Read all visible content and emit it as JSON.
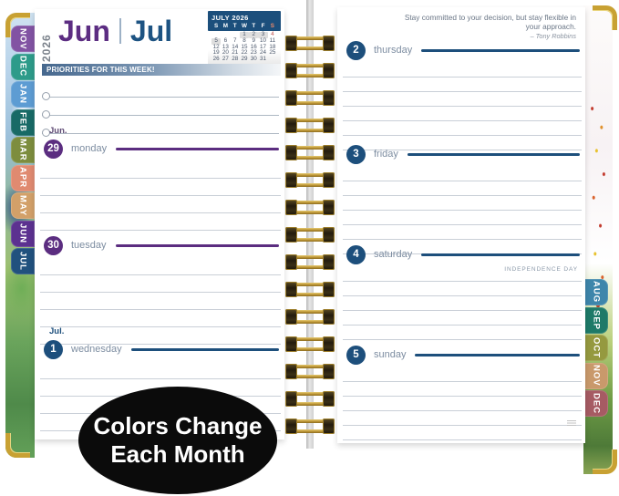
{
  "header": {
    "year": "2026",
    "month_left": "Jun",
    "divider": "|",
    "month_right": "Jul",
    "month_left_color": "#5c2d82",
    "month_right_color": "#1d5382"
  },
  "mini_calendar": {
    "title": "JULY 2026",
    "weekday_headers": [
      "S",
      "M",
      "T",
      "W",
      "T",
      "F",
      "S"
    ],
    "weeks": [
      [
        "",
        "",
        "",
        "1",
        "2",
        "3",
        "4"
      ],
      [
        "5",
        "6",
        "7",
        "8",
        "9",
        "10",
        "11"
      ],
      [
        "12",
        "13",
        "14",
        "15",
        "16",
        "17",
        "18"
      ],
      [
        "19",
        "20",
        "21",
        "22",
        "23",
        "24",
        "25"
      ],
      [
        "26",
        "27",
        "28",
        "29",
        "30",
        "31",
        ""
      ]
    ],
    "highlighted_days": [
      "1",
      "2",
      "3",
      "5"
    ],
    "holiday_day": "4",
    "header_bg": "#1c4f7c",
    "saturday_header_color": "#f08a6a",
    "holiday_color": "#c0504d"
  },
  "priorities": {
    "label": "PRIORITIES FOR THIS WEEK!",
    "row_count": 3
  },
  "left_page": {
    "days": [
      {
        "month_label": "Jun.",
        "month_label_color": "#5f4b75",
        "number": "29",
        "name": "monday",
        "color": "#5b2d80"
      },
      {
        "number": "30",
        "name": "tuesday",
        "color": "#5b2d80"
      },
      {
        "month_label": "Jul.",
        "month_label_color": "#1d4f7c",
        "number": "1",
        "name": "wednesday",
        "color": "#1d4f7c"
      }
    ]
  },
  "right_page": {
    "quote": {
      "text": "Stay committed to your decision, but stay flexible in your approach.",
      "attribution": "– Tony Robbins"
    },
    "days": [
      {
        "number": "2",
        "name": "thursday",
        "color": "#1d4f7c"
      },
      {
        "number": "3",
        "name": "friday",
        "color": "#1d4f7c"
      },
      {
        "number": "4",
        "name": "saturday",
        "color": "#1d4f7c",
        "note": "INDEPENDENCE DAY"
      },
      {
        "number": "5",
        "name": "sunday",
        "color": "#1d4f7c"
      }
    ]
  },
  "tabs": {
    "left": [
      {
        "label": "NOV",
        "color": "#8253a3"
      },
      {
        "label": "DEC",
        "color": "#2d9b8a"
      },
      {
        "label": "JAN",
        "color": "#5d9cd3"
      },
      {
        "label": "FEB",
        "color": "#186a66"
      },
      {
        "label": "MAR",
        "color": "#7d8d3e"
      },
      {
        "label": "APR",
        "color": "#e08a70"
      },
      {
        "label": "MAY",
        "color": "#d2a069"
      },
      {
        "label": "JUN",
        "color": "#5c3190"
      },
      {
        "label": "JUL",
        "color": "#21517e"
      }
    ],
    "right": [
      {
        "label": "AUG",
        "color": "#3e86ab"
      },
      {
        "label": "SEP",
        "color": "#1e7a68"
      },
      {
        "label": "OCT",
        "color": "#95993f"
      },
      {
        "label": "NOV",
        "color": "#c9996b"
      },
      {
        "label": "DEC",
        "color": "#a65b63"
      }
    ]
  },
  "badge": {
    "line1": "Colors Change",
    "line2": "Each Month"
  }
}
